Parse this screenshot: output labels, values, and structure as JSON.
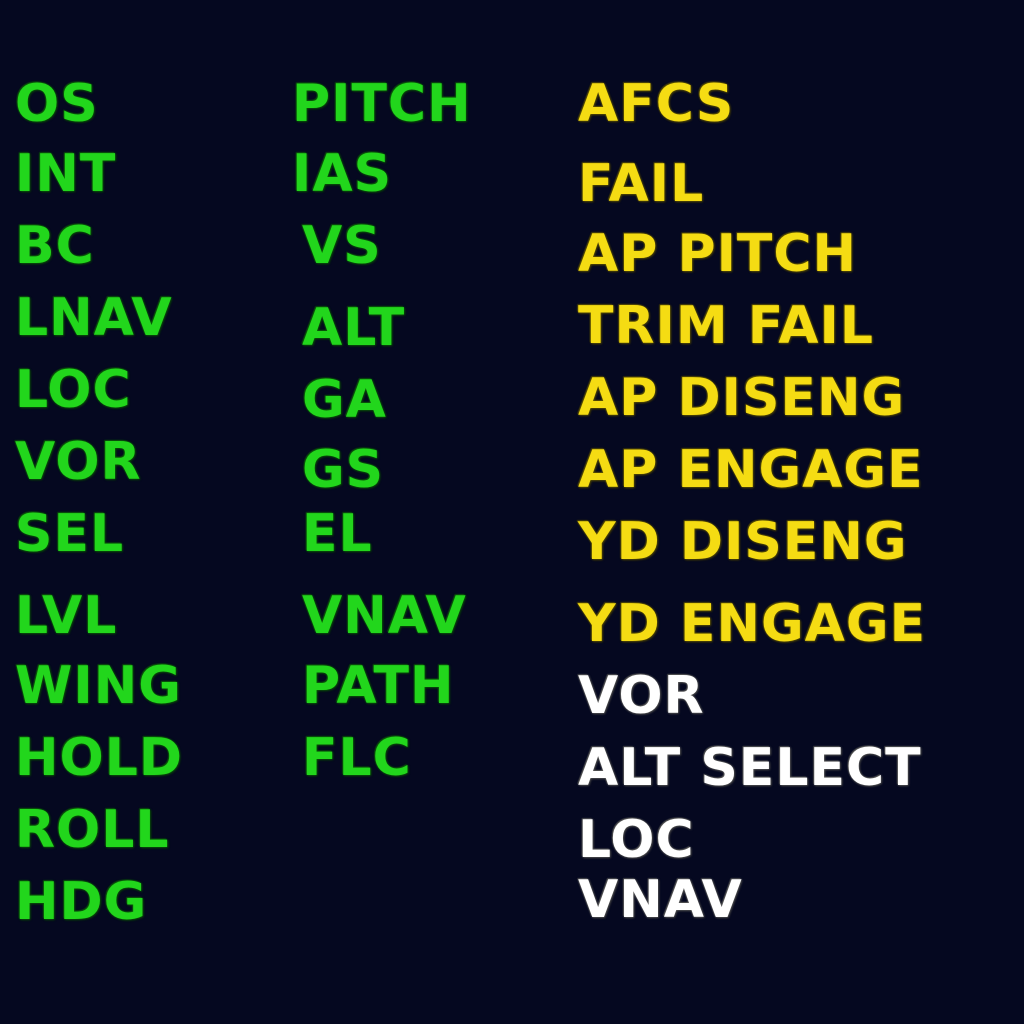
{
  "colors": {
    "background": "#050820",
    "mode_active": "#22d61c",
    "caution": "#f5dc13",
    "armed": "#ffffff"
  },
  "lateral_modes": [
    "OS",
    "INT",
    "BC",
    "LNAV",
    "LOC",
    "VOR",
    "SEL",
    "LVL",
    "WING",
    "HOLD",
    "ROLL",
    "HDG"
  ],
  "vertical_modes": [
    "PITCH",
    "IAS",
    "VS",
    "ALT",
    "GA",
    "GS",
    "EL",
    "VNAV",
    "PATH",
    "FLC"
  ],
  "annunciations": [
    "AFCS",
    "FAIL",
    "AP PITCH",
    "TRIM FAIL",
    "AP DISENG",
    "AP ENGAGE",
    "YD DISENG",
    "YD ENGAGE"
  ],
  "armed_modes": [
    "VOR",
    "ALT SELECT",
    "LOC",
    "VNAV"
  ]
}
